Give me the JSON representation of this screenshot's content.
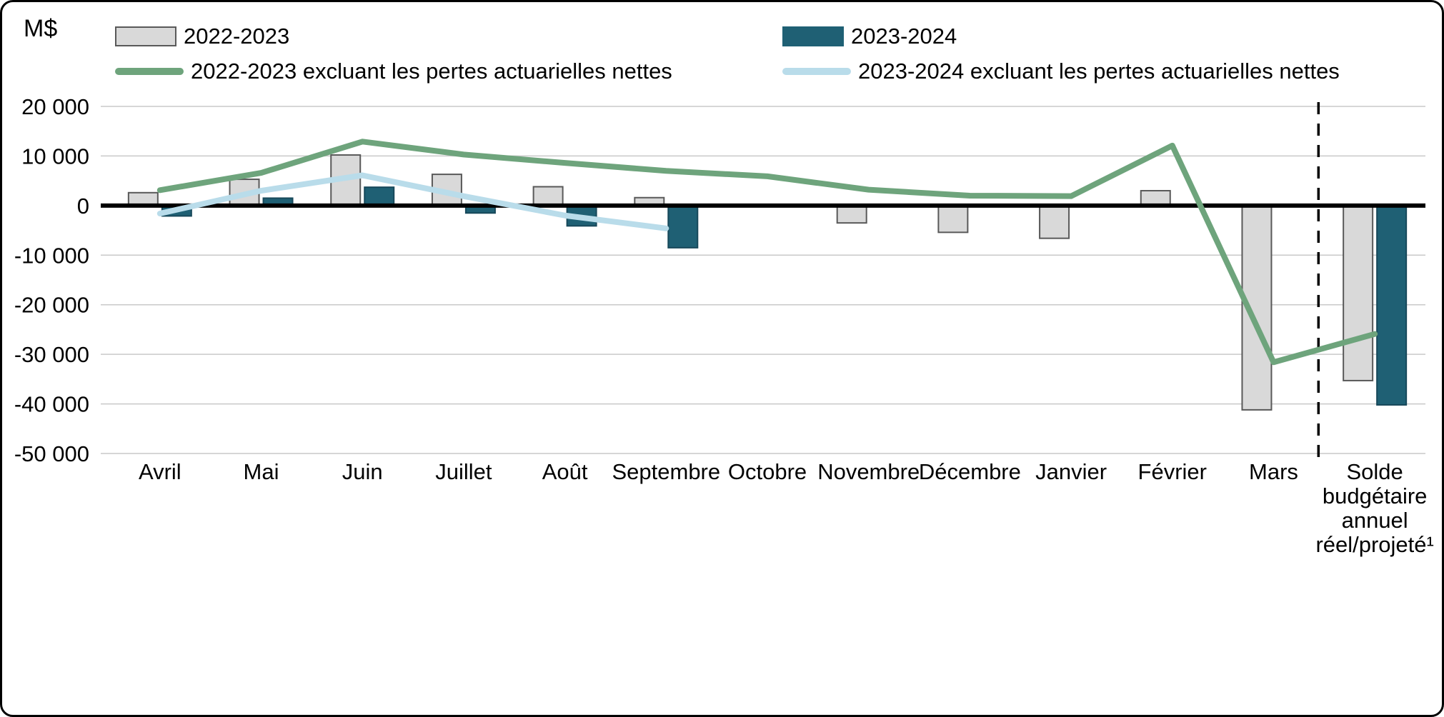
{
  "frame": {
    "unit_label": "M$"
  },
  "legend": {
    "items": [
      {
        "label": "2022-2023",
        "swatch": "bar",
        "color": "#d9d9d9",
        "border_color": "#595959"
      },
      {
        "label": "2023-2024",
        "swatch": "bar",
        "color": "#1f6074",
        "border_color": "#1f6074"
      },
      {
        "label": "2022-2023 excluant les pertes actuarielles nettes",
        "swatch": "line",
        "color": "#6ea47c"
      },
      {
        "label": "2023-2024 excluant les pertes actuarielles nettes",
        "swatch": "line",
        "color": "#b9dcea"
      }
    ]
  },
  "chart_data": {
    "type": "bar",
    "subtype": "grouped monthly bars with two line overlays",
    "title": "",
    "xlabel": "",
    "ylabel": "M$",
    "ylim": [
      -50000,
      20000
    ],
    "yticks": [
      20000,
      10000,
      0,
      -10000,
      -20000,
      -30000,
      -40000,
      -50000
    ],
    "ytick_labels": [
      "20 000",
      "10 000",
      "0",
      "-10 000",
      "-20 000",
      "-30 000",
      "-40 000",
      "-50 000"
    ],
    "grid": true,
    "legend_position": "top",
    "categories": [
      "Avril",
      "Mai",
      "Juin",
      "Juillet",
      "Août",
      "Septembre",
      "Octobre",
      "Novembre",
      "Décembre",
      "Janvier",
      "Février",
      "Mars",
      "Solde budgétaire annuel réel/projeté¹"
    ],
    "series": [
      {
        "name": "2022-2023",
        "type": "bar",
        "color": "#d9d9d9",
        "border_color": "#595959",
        "values": [
          2600,
          5300,
          10200,
          6300,
          3800,
          1600,
          null,
          -3500,
          -5400,
          -6600,
          3000,
          -41200,
          -35300
        ]
      },
      {
        "name": "2023-2024",
        "type": "bar",
        "color": "#1f6074",
        "border_color": "#17485a",
        "values": [
          -2100,
          1500,
          3700,
          -1500,
          -4100,
          -8500,
          null,
          null,
          null,
          null,
          null,
          null,
          -40200
        ]
      },
      {
        "name": "2022-2023 excluant les pertes actuarielles nettes",
        "type": "line",
        "color": "#6ea47c",
        "values": [
          3100,
          6600,
          12900,
          10300,
          8600,
          7000,
          5900,
          3200,
          2000,
          1900,
          12100,
          -31600,
          -25900
        ]
      },
      {
        "name": "2023-2024 excluant les pertes actuarielles nettes",
        "type": "line",
        "color": "#b9dcea",
        "values": [
          -1600,
          3000,
          6100,
          1900,
          -2000,
          -4600,
          null,
          null,
          null,
          null,
          null,
          null,
          null
        ]
      }
    ],
    "separator": {
      "style": "dashed",
      "after_category": "Mars",
      "color": "#000000"
    }
  }
}
